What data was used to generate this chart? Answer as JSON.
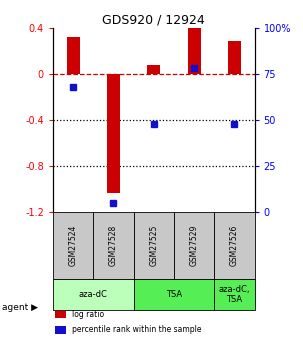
{
  "title": "GDS920 / 12924",
  "samples": [
    "GSM27524",
    "GSM27528",
    "GSM27525",
    "GSM27529",
    "GSM27526"
  ],
  "log_ratios": [
    0.32,
    -1.03,
    0.08,
    0.4,
    0.28
  ],
  "percentile_ranks": [
    68,
    5,
    48,
    78,
    48
  ],
  "ylim_left": [
    -1.2,
    0.4
  ],
  "ylim_right": [
    0,
    100
  ],
  "yticks_left": [
    0.4,
    0.0,
    -0.4,
    -0.8,
    -1.2
  ],
  "yticks_right": [
    100,
    75,
    50,
    25,
    0
  ],
  "bar_color_red": "#cc0000",
  "bar_color_blue": "#1111cc",
  "dashed_line_color": "#cc0000",
  "dotted_line_color": "#000000",
  "agent_groups": [
    {
      "label": "aza-dC",
      "span": [
        0,
        2
      ],
      "color": "#bbffbb"
    },
    {
      "label": "TSA",
      "span": [
        2,
        4
      ],
      "color": "#55ee55"
    },
    {
      "label": "aza-dC,\nTSA",
      "span": [
        4,
        5
      ],
      "color": "#55ee55"
    }
  ],
  "sample_bg_color": "#c8c8c8",
  "legend_items": [
    {
      "color": "#cc0000",
      "label": "log ratio"
    },
    {
      "color": "#1111cc",
      "label": "percentile rank within the sample"
    }
  ],
  "red_bar_width": 0.32,
  "blue_marker_size": 28
}
